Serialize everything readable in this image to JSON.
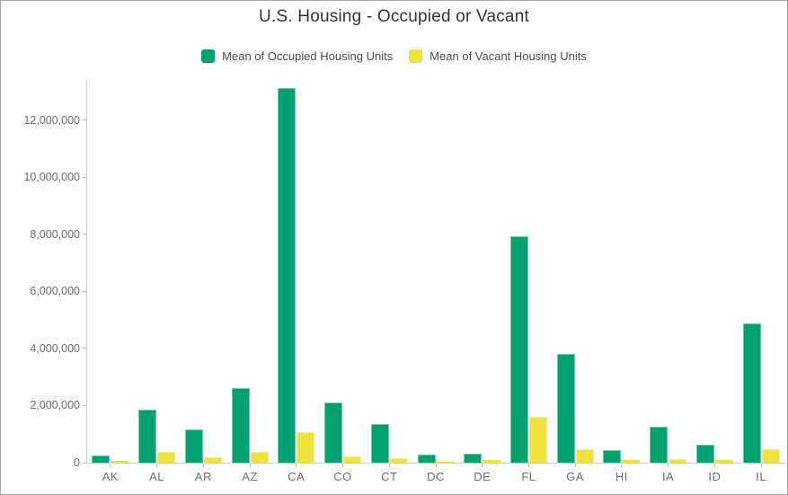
{
  "title": "U.S. Housing - Occupied or Vacant",
  "chart_data": {
    "type": "bar",
    "title": "U.S. Housing - Occupied or Vacant",
    "categories": [
      "AK",
      "AL",
      "AR",
      "AZ",
      "CA",
      "CO",
      "CT",
      "DC",
      "DE",
      "FL",
      "GA",
      "HI",
      "IA",
      "ID",
      "IL"
    ],
    "series": [
      {
        "name": "Mean of Occupied Housing Units",
        "color": "#00A071",
        "edge_color": "#6FCBAA",
        "values": [
          240000,
          1870000,
          1150000,
          2600000,
          13130000,
          2110000,
          1360000,
          270000,
          330000,
          7950000,
          3810000,
          440000,
          1260000,
          620000,
          4880000
        ]
      },
      {
        "name": "Mean of Vacant Housing Units",
        "color": "#F0E23C",
        "edge_color": "#F5EDA1",
        "values": [
          50000,
          380000,
          190000,
          380000,
          1060000,
          210000,
          150000,
          40000,
          80000,
          1600000,
          460000,
          80000,
          140000,
          90000,
          480000
        ]
      }
    ],
    "xlabel": "",
    "ylabel": "",
    "ylim": [
      0,
      13350000
    ],
    "y_tick_step": 2000000,
    "y_tick_labels": [
      "0",
      "2,000,000",
      "4,000,000",
      "6,000,000",
      "8,000,000",
      "10,000,000",
      "12,000,000"
    ],
    "grid": false,
    "legend_position": "top",
    "colors": {
      "axis_line": "#cccccc",
      "tick_mark": "#bdbdbd",
      "axis_label": "#6e6e6e",
      "title_text": "#333333",
      "legend_text": "#4d4d4d"
    }
  }
}
